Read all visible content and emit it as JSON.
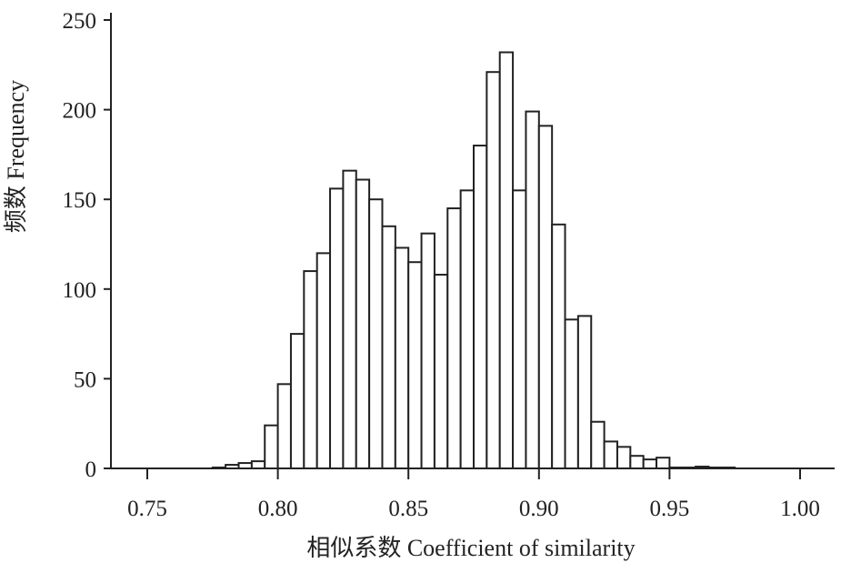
{
  "chart_data": {
    "type": "bar",
    "xlabel": "相似系数 Coefficient of similarity",
    "ylabel": "频数 Frequency",
    "xlim": [
      0.735,
      1.01
    ],
    "ylim": [
      0,
      250
    ],
    "bin_width": 0.005,
    "x_ticks": [
      0.75,
      0.8,
      0.85,
      0.9,
      0.95,
      1.0
    ],
    "x_tick_labels": [
      "0.75",
      "0.80",
      "0.85",
      "0.90",
      "0.95",
      "1.00"
    ],
    "y_ticks": [
      0,
      50,
      100,
      150,
      200,
      250
    ],
    "y_tick_labels": [
      "0",
      "50",
      "100",
      "150",
      "200",
      "250"
    ],
    "grid": false,
    "legend": "none",
    "bins": [
      {
        "start": 0.775,
        "value": 0.5
      },
      {
        "start": 0.78,
        "value": 2
      },
      {
        "start": 0.785,
        "value": 3
      },
      {
        "start": 0.79,
        "value": 4
      },
      {
        "start": 0.795,
        "value": 24
      },
      {
        "start": 0.8,
        "value": 47
      },
      {
        "start": 0.805,
        "value": 75
      },
      {
        "start": 0.81,
        "value": 110
      },
      {
        "start": 0.815,
        "value": 120
      },
      {
        "start": 0.82,
        "value": 156
      },
      {
        "start": 0.825,
        "value": 166
      },
      {
        "start": 0.83,
        "value": 161
      },
      {
        "start": 0.835,
        "value": 150
      },
      {
        "start": 0.84,
        "value": 135
      },
      {
        "start": 0.845,
        "value": 123
      },
      {
        "start": 0.85,
        "value": 115
      },
      {
        "start": 0.855,
        "value": 131
      },
      {
        "start": 0.86,
        "value": 108
      },
      {
        "start": 0.865,
        "value": 145
      },
      {
        "start": 0.87,
        "value": 155
      },
      {
        "start": 0.875,
        "value": 180
      },
      {
        "start": 0.88,
        "value": 221
      },
      {
        "start": 0.885,
        "value": 232
      },
      {
        "start": 0.89,
        "value": 155
      },
      {
        "start": 0.895,
        "value": 199
      },
      {
        "start": 0.9,
        "value": 191
      },
      {
        "start": 0.905,
        "value": 136
      },
      {
        "start": 0.91,
        "value": 83
      },
      {
        "start": 0.915,
        "value": 85
      },
      {
        "start": 0.92,
        "value": 26
      },
      {
        "start": 0.925,
        "value": 15
      },
      {
        "start": 0.93,
        "value": 12
      },
      {
        "start": 0.935,
        "value": 7
      },
      {
        "start": 0.94,
        "value": 5
      },
      {
        "start": 0.945,
        "value": 6
      },
      {
        "start": 0.95,
        "value": 0.5
      },
      {
        "start": 0.955,
        "value": 0.5
      },
      {
        "start": 0.96,
        "value": 1
      },
      {
        "start": 0.965,
        "value": 0.5
      },
      {
        "start": 0.97,
        "value": 0.5
      }
    ]
  }
}
